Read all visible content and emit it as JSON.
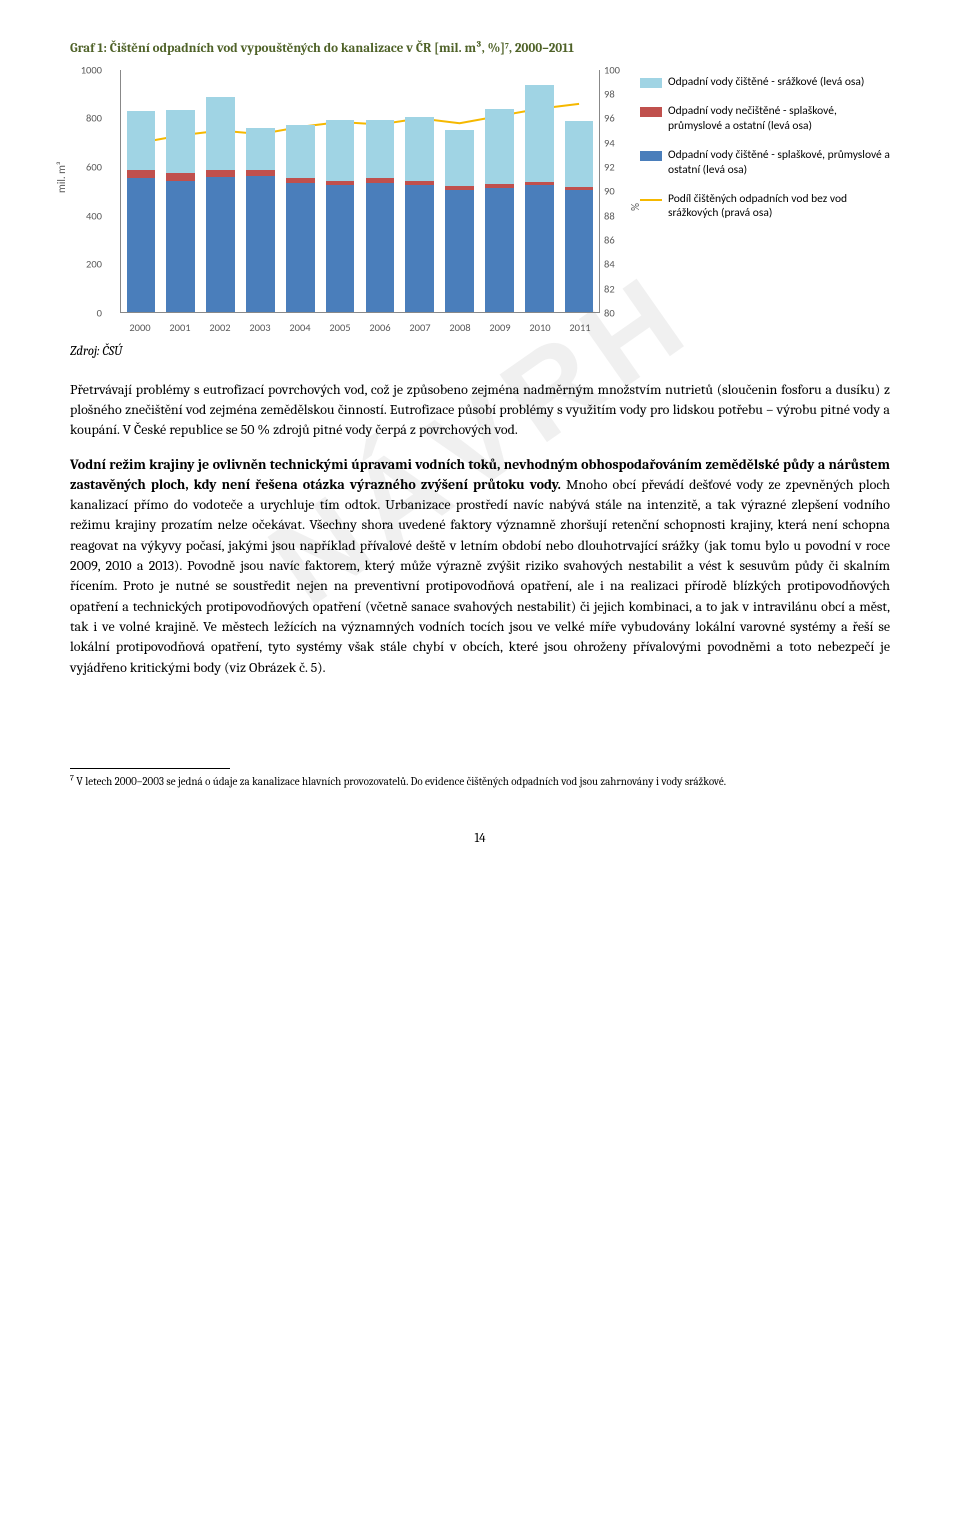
{
  "chart": {
    "title": "Graf 1: Čištění odpadních vod vypouštěných do kanalizace v ČR [mil. m³, %]⁷, 2000–2011",
    "type": "stacked_bar_with_line",
    "categories": [
      "2000",
      "2001",
      "2002",
      "2003",
      "2004",
      "2005",
      "2006",
      "2007",
      "2008",
      "2009",
      "2010",
      "2011"
    ],
    "series_bottom": {
      "label": "Odpadní vody čištěné - splaškové, průmyslové a ostatní (levá osa)",
      "color": "#4a7ebb",
      "values": [
        550,
        540,
        555,
        560,
        530,
        520,
        530,
        520,
        500,
        510,
        520,
        500
      ]
    },
    "series_middle": {
      "label": "Odpadní vody nečištěné - splaškové, průmyslové a ostatní (levá osa)",
      "color": "#c0504d",
      "values": [
        35,
        30,
        30,
        25,
        20,
        20,
        20,
        20,
        18,
        15,
        15,
        15
      ]
    },
    "series_top": {
      "label": "Odpadní vody čištěné - srážkové (levá osa)",
      "color": "#a0d4e4",
      "values": [
        240,
        260,
        300,
        170,
        220,
        250,
        240,
        260,
        230,
        310,
        400,
        270
      ]
    },
    "line_series": {
      "label": "Podíl čištěných odpadních vod bez vod srážkových (pravá osa)",
      "color": "#f5b800",
      "width": 2,
      "values": [
        94.0,
        94.6,
        95.0,
        94.7,
        95.3,
        95.7,
        95.5,
        96.0,
        95.6,
        96.2,
        96.8,
        97.2
      ]
    },
    "y_left": {
      "min": 0,
      "max": 1000,
      "ticks": [
        0,
        200,
        400,
        600,
        800,
        1000
      ],
      "label": "mil. m³"
    },
    "y_right": {
      "min": 80,
      "max": 100,
      "ticks": [
        80,
        82,
        84,
        86,
        88,
        90,
        92,
        94,
        96,
        98,
        100
      ],
      "label": "%"
    },
    "tick_color": "#595959",
    "axis_font": "Calibri",
    "background": "#ffffff"
  },
  "source": "Zdroj: ČSÚ",
  "para1": "Přetrvávají problémy s eutrofizací povrchových vod, což je způsobeno zejména nadměrným množstvím nutrietů (sloučenin fosforu a dusíku) z plošného znečištění vod zejména zemědělskou činností. Eutrofizace působí problémy s využitím vody pro lidskou potřebu – výrobu pitné vody a koupání. V České republice se 50 % zdrojů pitné vody čerpá z povrchových vod.",
  "para2_bold": "Vodní režim krajiny je ovlivněn technickými úpravami vodních toků, nevhodným obhospodařováním zemědělské půdy a nárůstem zastavěných ploch, kdy není řešena otázka výrazného zvýšení průtoku vody.",
  "para2_rest": " Mnoho obcí převádí dešťové vody ze zpevněných ploch kanalizací přímo do vodoteče a urychluje tím odtok. Urbanizace prostředí navíc nabývá stále na intenzitě, a tak výrazné zlepšení vodního režimu krajiny prozatím nelze očekávat. Všechny shora uvedené faktory významně zhoršují retenční schopnosti krajiny, která není schopna reagovat na výkyvy počasí, jakými jsou například přívalové deště v letním období nebo dlouhotrvající srážky (jak tomu bylo u povodní v roce 2009, 2010 a 2013). Povodně jsou navíc faktorem, který může výrazně zvýšit riziko svahových nestabilit a vést k sesuvům půdy či skalním řícením. Proto je nutné se soustředit nejen na preventivní protipovodňová opatření, ale i na realizaci přírodě blízkých protipovodňových opatření a technických protipovodňových opatření (včetně sanace svahových nestabilit) či jejich kombinaci, a to jak v intravilánu obcí a měst, tak i ve volné krajině. Ve městech ležících na významných vodních tocích jsou ve velké míře vybudovány lokální varovné systémy a řeší se lokální protipovodňová opatření, tyto systémy však stále chybí v obcích, které jsou ohroženy přívalovými povodněmi a toto nebezpečí je vyjádřeno kritickými body (viz Obrázek č. 5).",
  "footnote_num": "7",
  "footnote_text": " V letech 2000–2003 se jedná o údaje za kanalizace hlavních provozovatelů. Do evidence čištěných odpadních vod jsou zahrnovány i vody srážkové.",
  "page_number": "14",
  "watermark": "NÁVRH"
}
